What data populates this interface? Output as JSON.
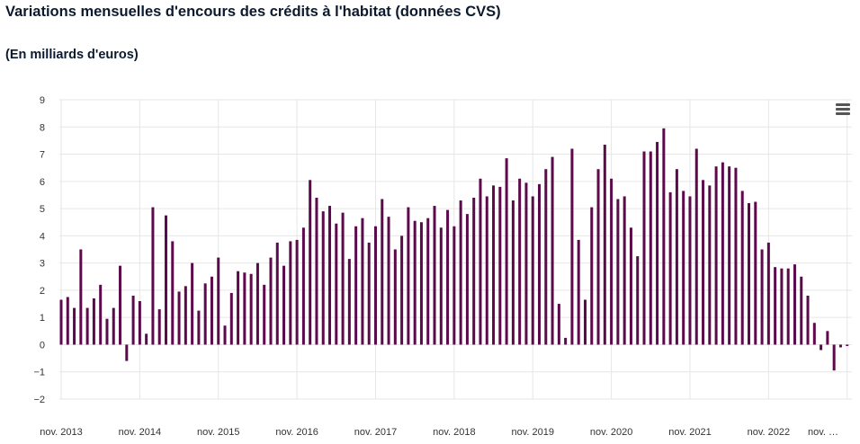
{
  "title": "Variations mensuelles d'encours des crédits à l'habitat (données CVS)",
  "subtitle": "(En milliards d'euros)",
  "menu_icon": "hamburger-menu-icon",
  "chart_data": {
    "type": "bar",
    "title": "Variations mensuelles d'encours des crédits à l'habitat (données CVS)",
    "subtitle": "(En milliards d'euros)",
    "xlabel": "",
    "ylabel": "",
    "ylim": [
      -2,
      9
    ],
    "yticks": [
      "9",
      "8",
      "7",
      "6",
      "5",
      "4",
      "3",
      "2",
      "1",
      "0",
      "−1",
      "−2"
    ],
    "xticks": [
      "nov. 2013",
      "nov. 2014",
      "nov. 2015",
      "nov. 2016",
      "nov. 2017",
      "nov. 2018",
      "nov. 2019",
      "nov. 2020",
      "nov. 2021",
      "nov. 2022",
      "nov. …"
    ],
    "grid": true,
    "color": "#5c0a4c",
    "values": [
      1.65,
      1.75,
      1.35,
      3.5,
      1.35,
      1.7,
      2.2,
      0.95,
      1.35,
      2.9,
      -0.6,
      1.8,
      1.6,
      0.4,
      5.05,
      1.3,
      4.75,
      3.8,
      1.95,
      2.15,
      3.0,
      1.25,
      2.25,
      2.5,
      3.2,
      0.7,
      1.9,
      2.7,
      2.65,
      2.6,
      3.0,
      2.2,
      3.2,
      3.75,
      2.9,
      3.8,
      3.85,
      4.3,
      6.05,
      5.4,
      4.9,
      5.1,
      4.45,
      4.85,
      3.15,
      4.35,
      4.65,
      3.75,
      4.35,
      5.35,
      4.7,
      3.5,
      4.0,
      5.05,
      4.55,
      4.5,
      4.65,
      5.1,
      4.3,
      4.95,
      4.35,
      5.3,
      4.8,
      5.4,
      6.1,
      5.45,
      5.85,
      5.8,
      6.85,
      5.3,
      6.1,
      5.95,
      5.45,
      5.9,
      6.45,
      6.9,
      1.5,
      0.25,
      7.2,
      3.85,
      1.65,
      5.05,
      6.45,
      7.35,
      6.1,
      5.35,
      5.45,
      4.3,
      3.25,
      7.1,
      7.1,
      7.45,
      7.95,
      5.6,
      6.45,
      5.65,
      5.45,
      7.2,
      6.05,
      5.85,
      6.55,
      6.7,
      6.55,
      6.5,
      5.65,
      5.2,
      5.25,
      3.5,
      3.75,
      2.85,
      2.8,
      2.8,
      2.95,
      2.5,
      1.8,
      0.8,
      -0.2,
      0.5,
      -0.95,
      -0.1,
      -0.05
    ]
  }
}
